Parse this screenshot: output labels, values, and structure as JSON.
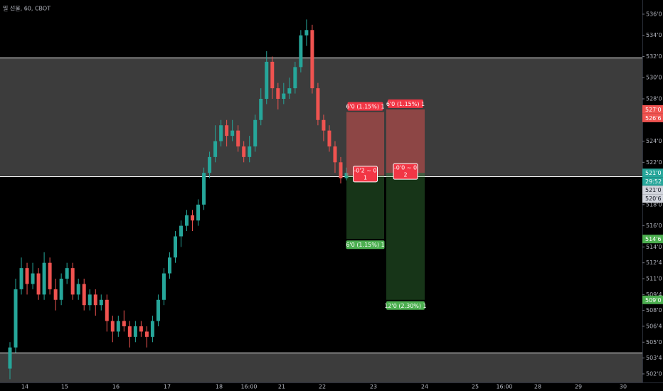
{
  "chart_data": {
    "type": "candlestick",
    "title": "밀 선물, 60, CBOT",
    "up_color": "#26a69a",
    "down_color": "#ef5350",
    "open": [
      502.5,
      504.5,
      510,
      512,
      510.5,
      511.5,
      509.5,
      512.5,
      510,
      509,
      511,
      512,
      509.5,
      510.5,
      508.5,
      509.5,
      508.5,
      509,
      507,
      506,
      507,
      506.5,
      505.5,
      506.5,
      506,
      505.5,
      507,
      509,
      511.5,
      513,
      515,
      516,
      517,
      516.5,
      518,
      521,
      522.5,
      524,
      525.5,
      524.5,
      525,
      523.5,
      522.5,
      523.5,
      526,
      528,
      531.5,
      529,
      528,
      528.5,
      529,
      531,
      534,
      534.5,
      529,
      526,
      525,
      523.5,
      522,
      520.5
    ],
    "high": [
      505,
      511,
      513,
      512.5,
      512.5,
      512,
      513.5,
      513,
      511,
      511.5,
      512.5,
      512.5,
      511,
      511,
      510,
      510,
      509.5,
      509.5,
      507.5,
      507.5,
      508,
      507,
      507,
      507,
      506.5,
      507.5,
      509.5,
      512,
      513.5,
      515.5,
      516.5,
      517.5,
      517.5,
      518.5,
      521.5,
      523,
      525.5,
      526,
      526,
      526,
      525.5,
      524,
      524.5,
      526.5,
      529,
      532.5,
      532,
      529.5,
      529.5,
      530,
      531.5,
      534.5,
      535.5,
      535,
      529.5,
      526.5,
      525.5,
      524,
      522.5,
      521.5
    ],
    "low": [
      501.5,
      504,
      509.5,
      509.5,
      510,
      509,
      509,
      509.5,
      508,
      508.5,
      510.5,
      509,
      509,
      508,
      508,
      507.5,
      508,
      506,
      505,
      505.5,
      506,
      504.5,
      505,
      505.5,
      504.5,
      505,
      506.5,
      508.5,
      511,
      512.5,
      514,
      515.5,
      515.5,
      516,
      517.5,
      520.5,
      522,
      523.5,
      523.5,
      524,
      523,
      522,
      522,
      523,
      525.5,
      527.5,
      528,
      527,
      527.5,
      528,
      528.5,
      530.5,
      533,
      528.5,
      525.5,
      524,
      523,
      521,
      520,
      520.3
    ],
    "close": [
      504.5,
      510,
      512,
      510.5,
      511.5,
      509.5,
      512.5,
      510,
      509,
      511,
      512,
      509.5,
      510.5,
      508.5,
      509.5,
      508.5,
      509,
      507,
      506,
      507,
      506.5,
      505.5,
      506.5,
      506,
      505.5,
      507,
      509,
      511.5,
      513,
      515,
      516,
      517,
      516.5,
      518,
      521,
      522.5,
      524,
      525.5,
      524.5,
      525,
      523.5,
      522.5,
      523.5,
      526,
      528,
      531.5,
      529,
      528,
      528.5,
      529,
      531,
      534,
      534.5,
      529,
      526,
      525,
      523.5,
      522,
      520.5,
      521
    ],
    "x_axis_labels": [
      "14",
      "15",
      "16",
      "17",
      "18",
      "16:00",
      "21",
      "22",
      "23",
      "24",
      "25",
      "16:00",
      "28",
      "29",
      "30"
    ],
    "ylim": [
      501.19,
      537.34
    ],
    "yticks": [
      {
        "value": 536,
        "label": "536'0"
      },
      {
        "value": 534,
        "label": "534'0"
      },
      {
        "value": 532,
        "label": "532'0"
      },
      {
        "value": 530,
        "label": "530'0"
      },
      {
        "value": 528,
        "label": "528'0"
      },
      {
        "value": 524,
        "label": "524'0"
      },
      {
        "value": 522,
        "label": "522'0"
      },
      {
        "value": 518,
        "label": "518'0"
      },
      {
        "value": 516,
        "label": "516'0"
      },
      {
        "value": 514,
        "label": "514'0"
      },
      {
        "value": 512.5,
        "label": "512'4"
      },
      {
        "value": 511,
        "label": "511'0"
      },
      {
        "value": 509.5,
        "label": "509'4"
      },
      {
        "value": 508,
        "label": "508'0"
      },
      {
        "value": 506.5,
        "label": "506'4"
      },
      {
        "value": 505,
        "label": "505'0"
      },
      {
        "value": 503.5,
        "label": "503'4"
      },
      {
        "value": 502,
        "label": "502'0"
      }
    ],
    "hlines": [
      531.9,
      520.7,
      504.0
    ],
    "zones": [
      {
        "from": 531.9,
        "to": 520.7
      },
      {
        "from": 504.0,
        "to": 500
      }
    ],
    "positions": [
      {
        "entry": 520.75,
        "stop": 526.75,
        "target": 514.75,
        "stop_label": "6'0 (1.15%) 1",
        "target_label": "6'0 (1.15%) 1",
        "center_label": [
          "-0'2 ~ 0",
          "1"
        ]
      },
      {
        "entry": 521,
        "stop": 527,
        "target": 509,
        "stop_label": "6'0 (1.15%) 1",
        "target_label": "12'0 (2.30%) 1",
        "center_label": [
          "-0'0 ~ 0",
          "2"
        ]
      }
    ],
    "price_badges": [
      {
        "value": 527,
        "label": "527'0",
        "color": "#ef5350"
      },
      {
        "value": 526.75,
        "label": "526'6",
        "color": "#ef5350"
      },
      {
        "value": 521,
        "label": "521'0",
        "color": "#26a69a"
      },
      {
        "value": 521,
        "label": "521'0",
        "color": "#d1d4dc"
      },
      {
        "value": 520.75,
        "label": "520'6",
        "color": "#d1d4dc"
      },
      {
        "value": 514.75,
        "label": "514'6",
        "color": "#4caf50"
      },
      {
        "value": 509,
        "label": "509'0",
        "color": "#4caf50"
      }
    ],
    "countdown": "29:52"
  }
}
